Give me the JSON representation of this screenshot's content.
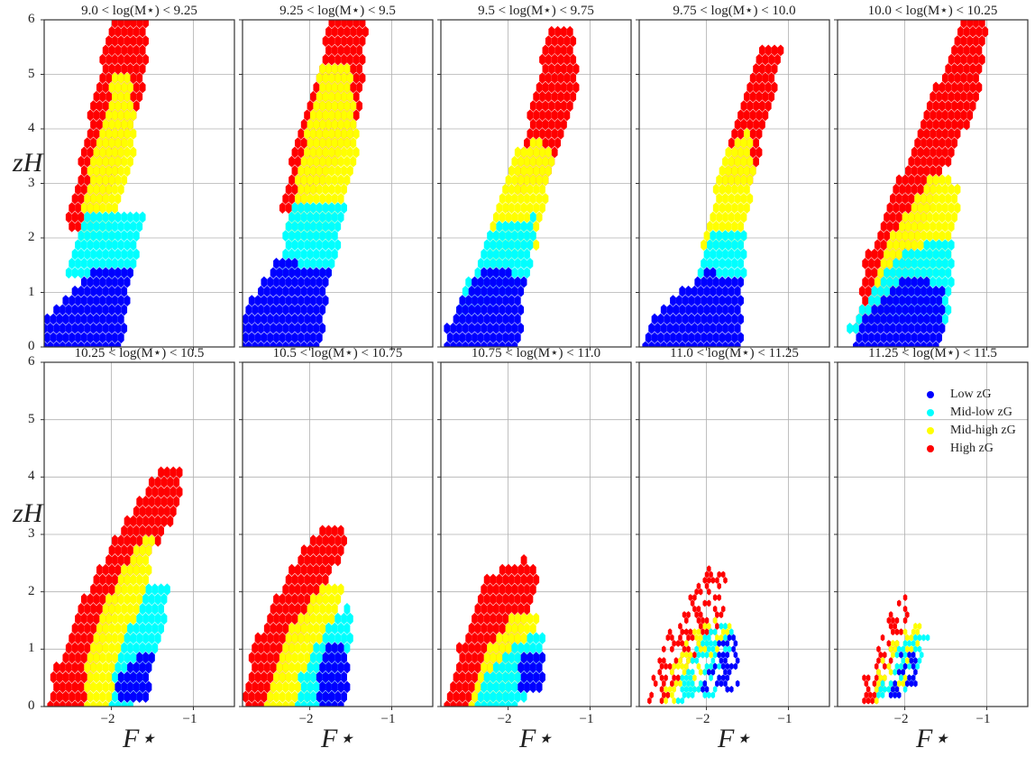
{
  "figure": {
    "ylabel": "zH",
    "xlabel": "F⋆"
  },
  "legend": [
    {
      "label": "Low zG",
      "color": "#0000ff"
    },
    {
      "label": "Mid-low zG",
      "color": "#00ffff"
    },
    {
      "label": "Mid-high zG",
      "color": "#ffff00"
    },
    {
      "label": "High zG",
      "color": "#ff0000"
    }
  ],
  "chart_data": {
    "type": "hexbin",
    "xlabel": "F⋆",
    "ylabel": "zH",
    "xlim": [
      -2.82,
      -0.5
    ],
    "ylim": [
      0,
      6
    ],
    "xticks": [
      -2,
      -1
    ],
    "yticks": [
      0,
      1,
      2,
      3,
      4,
      5,
      6
    ],
    "grid": true,
    "legend_position": "top-right of last panel",
    "series_order": [
      "High zG",
      "Mid-high zG",
      "Mid-low zG",
      "Low zG"
    ],
    "panels": [
      {
        "title": "9.0 < log(M⋆) < 9.25",
        "sparse": false,
        "regions": {
          "High zG": [
            [
              -2.55,
              2.2
            ],
            [
              -2.2,
              2.2
            ],
            [
              -1.6,
              4.5
            ],
            [
              -1.55,
              6
            ],
            [
              -2.0,
              6
            ],
            [
              -2.3,
              4
            ]
          ],
          "Mid-high zG": [
            [
              -2.4,
              2.0
            ],
            [
              -2.0,
              2.0
            ],
            [
              -1.7,
              3.5
            ],
            [
              -1.75,
              5.0
            ],
            [
              -1.95,
              5.0
            ],
            [
              -2.25,
              3.5
            ]
          ],
          "Mid-low zG": [
            [
              -2.6,
              1.2
            ],
            [
              -1.75,
              1.2
            ],
            [
              -1.6,
              2.4
            ],
            [
              -2.3,
              2.4
            ]
          ],
          "Low zG": [
            [
              -2.82,
              0
            ],
            [
              -1.85,
              0
            ],
            [
              -1.75,
              1.5
            ],
            [
              -2.2,
              1.5
            ],
            [
              -2.82,
              0.5
            ]
          ]
        }
      },
      {
        "title": "9.25 < log(M⋆) < 9.5",
        "sparse": false,
        "regions": {
          "High zG": [
            [
              -2.4,
              2.5
            ],
            [
              -2.1,
              2.5
            ],
            [
              -1.4,
              4
            ],
            [
              -1.3,
              6
            ],
            [
              -1.75,
              6
            ],
            [
              -2.0,
              4.5
            ]
          ],
          "Mid-high zG": [
            [
              -2.3,
              2.0
            ],
            [
              -1.75,
              2.0
            ],
            [
              -1.4,
              3.5
            ],
            [
              -1.5,
              5.2
            ],
            [
              -1.85,
              5.2
            ],
            [
              -2.1,
              3.5
            ]
          ],
          "Mid-low zG": [
            [
              -2.45,
              1.2
            ],
            [
              -1.75,
              1.2
            ],
            [
              -1.55,
              2.6
            ],
            [
              -2.2,
              2.6
            ]
          ],
          "Low zG": [
            [
              -2.82,
              0
            ],
            [
              -1.85,
              0
            ],
            [
              -1.75,
              1.4
            ],
            [
              -2.4,
              1.6
            ],
            [
              -2.82,
              0.6
            ]
          ]
        }
      },
      {
        "title": "9.5 < log(M⋆) < 9.75",
        "sparse": false,
        "regions": {
          "High zG": [
            [
              -1.95,
              2.8
            ],
            [
              -1.5,
              3.0
            ],
            [
              -1.15,
              4.8
            ],
            [
              -1.2,
              5.8
            ],
            [
              -1.5,
              5.8
            ],
            [
              -1.75,
              4.2
            ]
          ],
          "Mid-high zG": [
            [
              -2.25,
              1.4
            ],
            [
              -1.65,
              1.8
            ],
            [
              -1.45,
              3.4
            ],
            [
              -1.6,
              3.9
            ],
            [
              -1.9,
              3.6
            ],
            [
              -2.2,
              2.2
            ]
          ],
          "Mid-low zG": [
            [
              -2.6,
              0.4
            ],
            [
              -1.75,
              1.2
            ],
            [
              -1.65,
              2.4
            ],
            [
              -2.2,
              2.2
            ],
            [
              -2.6,
              0.8
            ]
          ],
          "Low zG": [
            [
              -2.78,
              0
            ],
            [
              -1.85,
              0
            ],
            [
              -1.8,
              1.3
            ],
            [
              -2.3,
              1.5
            ],
            [
              -2.78,
              0.3
            ]
          ]
        }
      },
      {
        "title": "9.75 < log(M⋆) < 10.0",
        "sparse": false,
        "regions": {
          "High zG": [
            [
              -1.85,
              3.0
            ],
            [
              -1.45,
              3.0
            ],
            [
              -1.2,
              4.5
            ],
            [
              -1.05,
              5.6
            ],
            [
              -1.35,
              5.6
            ],
            [
              -1.6,
              4.2
            ]
          ],
          "Mid-high zG": [
            [
              -2.05,
              1.8
            ],
            [
              -1.55,
              1.8
            ],
            [
              -1.4,
              3.3
            ],
            [
              -1.5,
              4.0
            ],
            [
              -1.8,
              3.5
            ]
          ],
          "Mid-low zG": [
            [
              -2.1,
              1.2
            ],
            [
              -1.55,
              1.2
            ],
            [
              -1.5,
              2.1
            ],
            [
              -1.95,
              2.1
            ]
          ],
          "Low zG": [
            [
              -2.75,
              0
            ],
            [
              -1.55,
              0
            ],
            [
              -1.55,
              1.2
            ],
            [
              -2.0,
              1.4
            ],
            [
              -2.7,
              0.5
            ]
          ]
        }
      },
      {
        "title": "10.0 < log(M⋆) < 10.25",
        "sparse": false,
        "regions": {
          "High zG": [
            [
              -2.6,
              0.3
            ],
            [
              -2.2,
              0.5
            ],
            [
              -1.6,
              3.0
            ],
            [
              -1.1,
              4.5
            ],
            [
              -1.0,
              6
            ],
            [
              -1.3,
              6
            ],
            [
              -1.9,
              3.7
            ],
            [
              -2.5,
              1.5
            ]
          ],
          "Mid-high zG": [
            [
              -2.4,
              0.8
            ],
            [
              -1.5,
              1.3
            ],
            [
              -1.3,
              3.0
            ],
            [
              -1.65,
              3.2
            ],
            [
              -2.2,
              2.0
            ]
          ],
          "Mid-low zG": [
            [
              -2.7,
              0.3
            ],
            [
              -1.45,
              0.5
            ],
            [
              -1.4,
              2.0
            ],
            [
              -2.0,
              1.8
            ],
            [
              -2.5,
              0.8
            ]
          ],
          "Low zG": [
            [
              -2.6,
              0
            ],
            [
              -1.55,
              0
            ],
            [
              -1.5,
              1.1
            ],
            [
              -2.0,
              1.3
            ],
            [
              -2.5,
              0.5
            ]
          ]
        }
      },
      {
        "title": "10.25 < log(M⋆) < 10.5",
        "sparse": false,
        "regions": {
          "High zG": [
            [
              -2.75,
              0
            ],
            [
              -2.35,
              0
            ],
            [
              -1.9,
              2.0
            ],
            [
              -1.25,
              3.2
            ],
            [
              -1.1,
              4.2
            ],
            [
              -1.4,
              4.2
            ],
            [
              -1.9,
              3.1
            ],
            [
              -2.3,
              2.0
            ],
            [
              -2.7,
              0.6
            ]
          ],
          "Mid-high zG": [
            [
              -2.3,
              0
            ],
            [
              -2.05,
              0
            ],
            [
              -1.65,
              1.6
            ],
            [
              -1.45,
              3.0
            ],
            [
              -1.6,
              3.0
            ],
            [
              -2.0,
              2.0
            ],
            [
              -2.3,
              0.8
            ]
          ],
          "Mid-low zG": [
            [
              -2.0,
              0
            ],
            [
              -1.7,
              0
            ],
            [
              -1.4,
              1.0
            ],
            [
              -1.3,
              2.2
            ],
            [
              -1.5,
              2.2
            ],
            [
              -1.95,
              0.8
            ]
          ],
          "Low zG": [
            [
              -1.95,
              0.1
            ],
            [
              -1.55,
              0.1
            ],
            [
              -1.5,
              0.9
            ],
            [
              -1.6,
              1.0
            ],
            [
              -1.95,
              0.5
            ]
          ]
        }
      },
      {
        "title": "10.5 < log(M⋆) < 10.75",
        "sparse": false,
        "regions": {
          "High zG": [
            [
              -2.8,
              0
            ],
            [
              -2.5,
              0
            ],
            [
              -2.0,
              1.5
            ],
            [
              -1.5,
              3.0
            ],
            [
              -1.8,
              3.2
            ],
            [
              -2.2,
              2.5
            ],
            [
              -2.7,
              1
            ]
          ],
          "Mid-high zG": [
            [
              -2.55,
              0
            ],
            [
              -2.0,
              0
            ],
            [
              -1.75,
              1.2
            ],
            [
              -1.55,
              2.2
            ],
            [
              -1.8,
              2.2
            ],
            [
              -2.3,
              1.2
            ]
          ],
          "Mid-low zG": [
            [
              -2.2,
              0
            ],
            [
              -1.75,
              0
            ],
            [
              -1.5,
              1.0
            ],
            [
              -1.5,
              1.8
            ],
            [
              -1.75,
              1.5
            ],
            [
              -2.1,
              0.6
            ]
          ],
          "Low zG": [
            [
              -1.9,
              0
            ],
            [
              -1.55,
              0
            ],
            [
              -1.5,
              1.0
            ],
            [
              -1.75,
              1.1
            ],
            [
              -1.9,
              0.5
            ]
          ]
        }
      },
      {
        "title": "10.75 < log(M⋆) < 11.0",
        "sparse": false,
        "regions": {
          "High zG": [
            [
              -2.8,
              0
            ],
            [
              -2.5,
              0
            ],
            [
              -1.9,
              1.0
            ],
            [
              -1.6,
              2.2
            ],
            [
              -1.8,
              2.6
            ],
            [
              -2.3,
              2.2
            ],
            [
              -2.6,
              1
            ]
          ],
          "Mid-high zG": [
            [
              -2.5,
              0
            ],
            [
              -2.1,
              0
            ],
            [
              -1.75,
              0.8
            ],
            [
              -1.6,
              1.6
            ],
            [
              -1.85,
              1.7
            ],
            [
              -2.3,
              1.0
            ]
          ],
          "Mid-low zG": [
            [
              -2.4,
              0
            ],
            [
              -1.9,
              0
            ],
            [
              -1.6,
              0.5
            ],
            [
              -1.55,
              1.2
            ],
            [
              -1.8,
              1.2
            ],
            [
              -2.3,
              0.5
            ]
          ],
          "Low zG": [
            [
              -1.9,
              0.3
            ],
            [
              -1.55,
              0.3
            ],
            [
              -1.55,
              1.0
            ],
            [
              -1.8,
              1.0
            ]
          ]
        }
      },
      {
        "title": "11.0 < log(M⋆) < 11.25",
        "sparse": true,
        "regions": {
          "High zG": [
            [
              -2.75,
              0
            ],
            [
              -2.5,
              0
            ],
            [
              -1.8,
              1.5
            ],
            [
              -1.75,
              2.5
            ],
            [
              -1.95,
              2.5
            ],
            [
              -2.5,
              1.2
            ]
          ],
          "Mid-high zG": [
            [
              -2.55,
              0
            ],
            [
              -2.1,
              0.2
            ],
            [
              -1.7,
              1.4
            ],
            [
              -2.0,
              1.6
            ],
            [
              -2.5,
              0.6
            ]
          ],
          "Mid-low zG": [
            [
              -2.4,
              0
            ],
            [
              -1.9,
              0.2
            ],
            [
              -1.6,
              1.3
            ],
            [
              -1.9,
              1.5
            ],
            [
              -2.3,
              0.6
            ]
          ],
          "Low zG": [
            [
              -2.1,
              0.2
            ],
            [
              -1.6,
              0.3
            ],
            [
              -1.6,
              1.3
            ],
            [
              -1.85,
              1.1
            ]
          ]
        }
      },
      {
        "title": "11.25 < log(M⋆) < 11.5",
        "sparse": true,
        "regions": {
          "High zG": [
            [
              -2.55,
              0
            ],
            [
              -2.3,
              0.1
            ],
            [
              -1.95,
              1.5
            ],
            [
              -2.0,
              2.0
            ],
            [
              -2.2,
              1.6
            ],
            [
              -2.5,
              0.5
            ]
          ],
          "Mid-high zG": [
            [
              -2.45,
              0
            ],
            [
              -2.0,
              0.3
            ],
            [
              -1.75,
              1.5
            ],
            [
              -2.0,
              1.5
            ],
            [
              -2.35,
              0.6
            ]
          ],
          "Mid-low zG": [
            [
              -2.4,
              0
            ],
            [
              -1.9,
              0.3
            ],
            [
              -1.7,
              1.3
            ],
            [
              -2.0,
              1.2
            ],
            [
              -2.3,
              0.4
            ]
          ],
          "Low zG": [
            [
              -2.2,
              0.1
            ],
            [
              -1.85,
              0.3
            ],
            [
              -1.85,
              1.0
            ],
            [
              -2.05,
              0.9
            ]
          ]
        }
      }
    ]
  }
}
